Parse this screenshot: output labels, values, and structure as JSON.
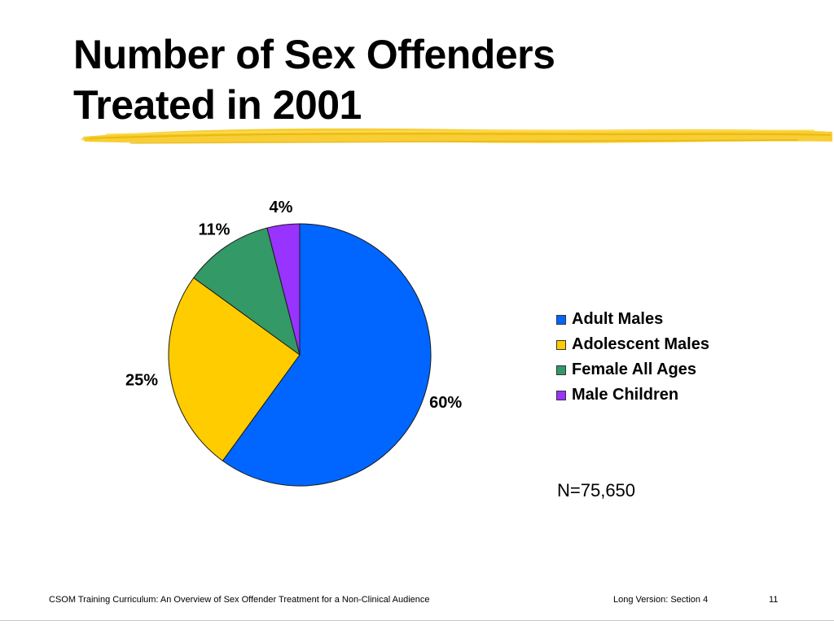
{
  "slide": {
    "title_lines": [
      "Number of Sex Offenders",
      "Treated in 2001"
    ],
    "sample_size": "N=75,650",
    "footer": {
      "left": "CSOM Training Curriculum:  An Overview of Sex Offender Treatment for a Non-Clinical Audience",
      "middle": "Long Version:  Section 4",
      "page_number": "11"
    },
    "accent_color": "#F5C518"
  },
  "chart_data": {
    "type": "pie",
    "title": "Number of Sex Offenders Treated in 2001",
    "legend_position": "right",
    "slices": [
      {
        "name": "Adult Males",
        "value": 60,
        "label": "60%",
        "color": "#0066FF"
      },
      {
        "name": "Adolescent Males",
        "value": 25,
        "label": "25%",
        "color": "#FFCC00"
      },
      {
        "name": "Female All Ages",
        "value": 11,
        "label": "11%",
        "color": "#339966"
      },
      {
        "name": "Male Children",
        "value": 4,
        "label": "4%",
        "color": "#9933FF"
      }
    ]
  }
}
